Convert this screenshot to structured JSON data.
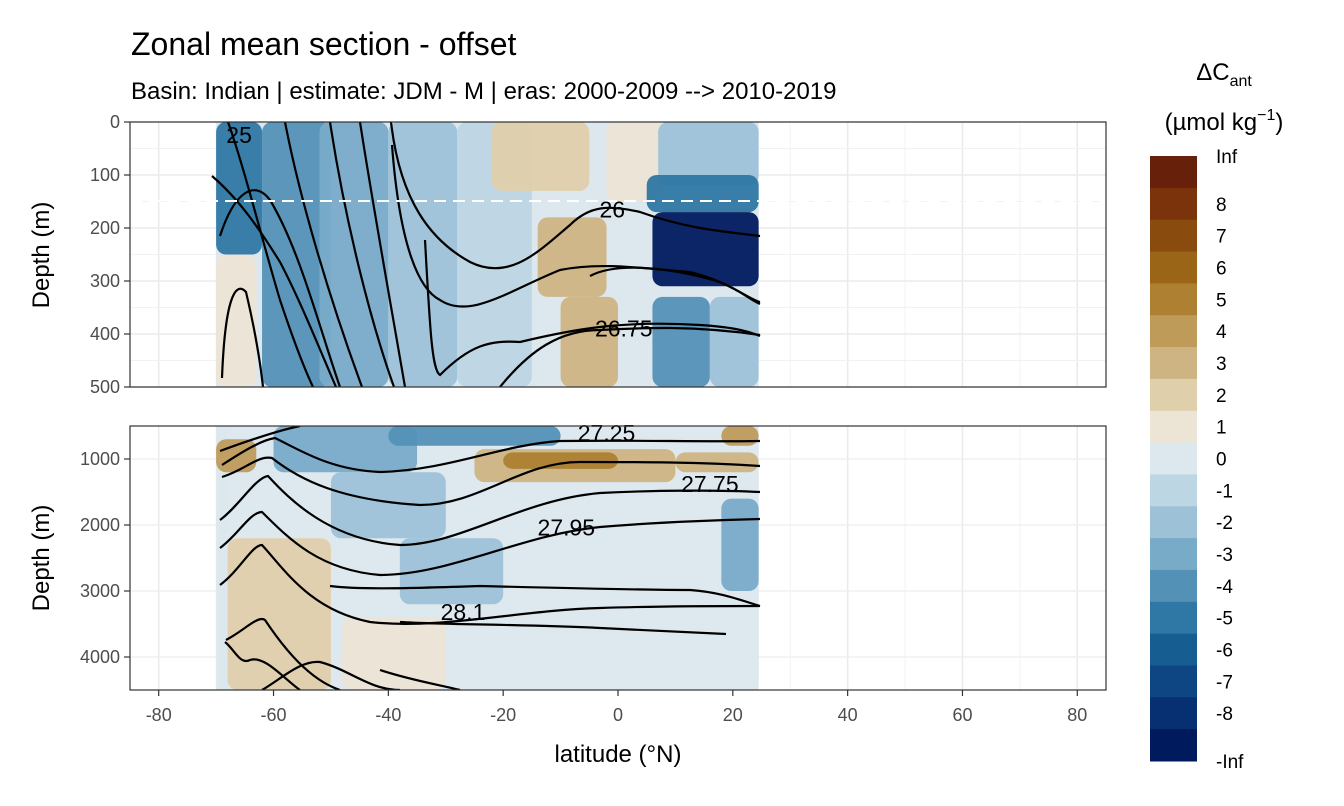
{
  "chart_data": {
    "type": "heatmap",
    "title": "Zonal mean section - offset",
    "subtitle": "Basin: Indian | estimate: JDM - M | eras: 2000-2009 --> 2010-2019",
    "xlabel": "latitude (°N)",
    "xlim": [
      -85,
      85
    ],
    "x_ticks": [
      -80,
      -60,
      -40,
      -20,
      0,
      20,
      40,
      60,
      80
    ],
    "x_tick_labels": [
      "-80",
      "-60",
      "-40",
      "-20",
      "0",
      "20",
      "40",
      "60",
      "80"
    ],
    "data_lat_range": [
      -70,
      24.5
    ],
    "mixed_layer_depth": 150,
    "panels": [
      {
        "name": "upper",
        "ylabel": "Depth (m)",
        "ylim": [
          0,
          500
        ],
        "y_ticks": [
          0,
          100,
          200,
          300,
          400,
          500
        ],
        "y_tick_labels": [
          "0",
          "100",
          "200",
          "300",
          "400",
          "500"
        ],
        "contour_labels": [
          {
            "text": "25",
            "lat": -66,
            "depth": 40
          },
          {
            "text": "26",
            "lat": -1,
            "depth": 180
          },
          {
            "text": "26.75",
            "lat": 1,
            "depth": 405
          }
        ]
      },
      {
        "name": "lower",
        "ylabel": "Depth (m)",
        "ylim": [
          500,
          4500
        ],
        "y_ticks": [
          1000,
          2000,
          3000,
          4000
        ],
        "y_tick_labels": [
          "1000",
          "2000",
          "3000",
          "4000"
        ],
        "contour_labels": [
          {
            "text": "27.25",
            "lat": -2,
            "depth": 730
          },
          {
            "text": "27.75",
            "lat": 16,
            "depth": 1500
          },
          {
            "text": "27.95",
            "lat": -9,
            "depth": 2160
          },
          {
            "text": "28.1",
            "lat": -27,
            "depth": 3440
          }
        ]
      }
    ],
    "legend": {
      "title": "ΔC",
      "title_subscript": "ant",
      "unit_prefix": "(µmol kg",
      "unit_superscript": "−1",
      "unit_suffix": ")",
      "labels": [
        "Inf",
        "8",
        "7",
        "6",
        "5",
        "4",
        "3",
        "2",
        "1",
        "0",
        "-1",
        "-2",
        "-3",
        "-4",
        "-5",
        "-6",
        "-7",
        "-8",
        "-Inf"
      ],
      "colors": [
        "#67200a",
        "#7a330b",
        "#8a4c0e",
        "#9a6516",
        "#ad8032",
        "#bf9b5a",
        "#ceb483",
        "#dfcfab",
        "#ece4d5",
        "#dde8ee",
        "#bdd6e4",
        "#9dc2d8",
        "#78abc8",
        "#5491b6",
        "#2f77a4",
        "#165d92",
        "#0d4683",
        "#063072",
        "#001a5e"
      ]
    },
    "fields": [
      {
        "lat": [
          -70,
          -62
        ],
        "depth": [
          0,
          250
        ],
        "value": -5
      },
      {
        "lat": [
          -62,
          -50
        ],
        "depth": [
          0,
          500
        ],
        "value": -4.5
      },
      {
        "lat": [
          -52,
          -40
        ],
        "depth": [
          0,
          500
        ],
        "value": -3.5
      },
      {
        "lat": [
          -40,
          -28
        ],
        "depth": [
          0,
          500
        ],
        "value": -2.5
      },
      {
        "lat": [
          -28,
          -15
        ],
        "depth": [
          0,
          500
        ],
        "value": -1.5
      },
      {
        "lat": [
          -70,
          -63
        ],
        "depth": [
          250,
          500
        ],
        "value": 0.5
      },
      {
        "lat": [
          -22,
          -5
        ],
        "depth": [
          0,
          130
        ],
        "value": 1.5
      },
      {
        "lat": [
          -14,
          -2
        ],
        "depth": [
          180,
          330
        ],
        "value": 2.5
      },
      {
        "lat": [
          -10,
          0
        ],
        "depth": [
          330,
          500
        ],
        "value": 2.5
      },
      {
        "lat": [
          -2,
          8
        ],
        "depth": [
          0,
          150
        ],
        "value": 0.8
      },
      {
        "lat": [
          7,
          24.5
        ],
        "depth": [
          0,
          120
        ],
        "value": -2
      },
      {
        "lat": [
          5,
          24.5
        ],
        "depth": [
          100,
          170
        ],
        "value": -5
      },
      {
        "lat": [
          6,
          24.5
        ],
        "depth": [
          170,
          310
        ],
        "value": -8.5
      },
      {
        "lat": [
          6,
          16
        ],
        "depth": [
          330,
          500
        ],
        "value": -4.5
      },
      {
        "lat": [
          16,
          24.5
        ],
        "depth": [
          330,
          500
        ],
        "value": -2.5
      },
      {
        "lat": [
          -68,
          24.5
        ],
        "depth": [
          500,
          4500
        ],
        "value": -0.5
      },
      {
        "lat": [
          -60,
          -35
        ],
        "depth": [
          500,
          1200
        ],
        "value": -3.5
      },
      {
        "lat": [
          -40,
          -10
        ],
        "depth": [
          500,
          800
        ],
        "value": -4
      },
      {
        "lat": [
          -70,
          -63
        ],
        "depth": [
          700,
          1200
        ],
        "value": 3.5
      },
      {
        "lat": [
          -25,
          10
        ],
        "depth": [
          850,
          1350
        ],
        "value": 2.5
      },
      {
        "lat": [
          -20,
          0
        ],
        "depth": [
          900,
          1150
        ],
        "value": 4
      },
      {
        "lat": [
          10,
          24.5
        ],
        "depth": [
          900,
          1200
        ],
        "value": 2
      },
      {
        "lat": [
          18,
          24.5
        ],
        "depth": [
          500,
          800
        ],
        "value": 3
      },
      {
        "lat": [
          -50,
          -30
        ],
        "depth": [
          1200,
          2200
        ],
        "value": -2.5
      },
      {
        "lat": [
          -38,
          -20
        ],
        "depth": [
          2200,
          3200
        ],
        "value": -2.5
      },
      {
        "lat": [
          18,
          24.5
        ],
        "depth": [
          1600,
          3000
        ],
        "value": -3.5
      },
      {
        "lat": [
          -68,
          -50
        ],
        "depth": [
          2200,
          4500
        ],
        "value": 1
      },
      {
        "lat": [
          -48,
          -30
        ],
        "depth": [
          3400,
          4500
        ],
        "value": 0.5
      }
    ]
  }
}
